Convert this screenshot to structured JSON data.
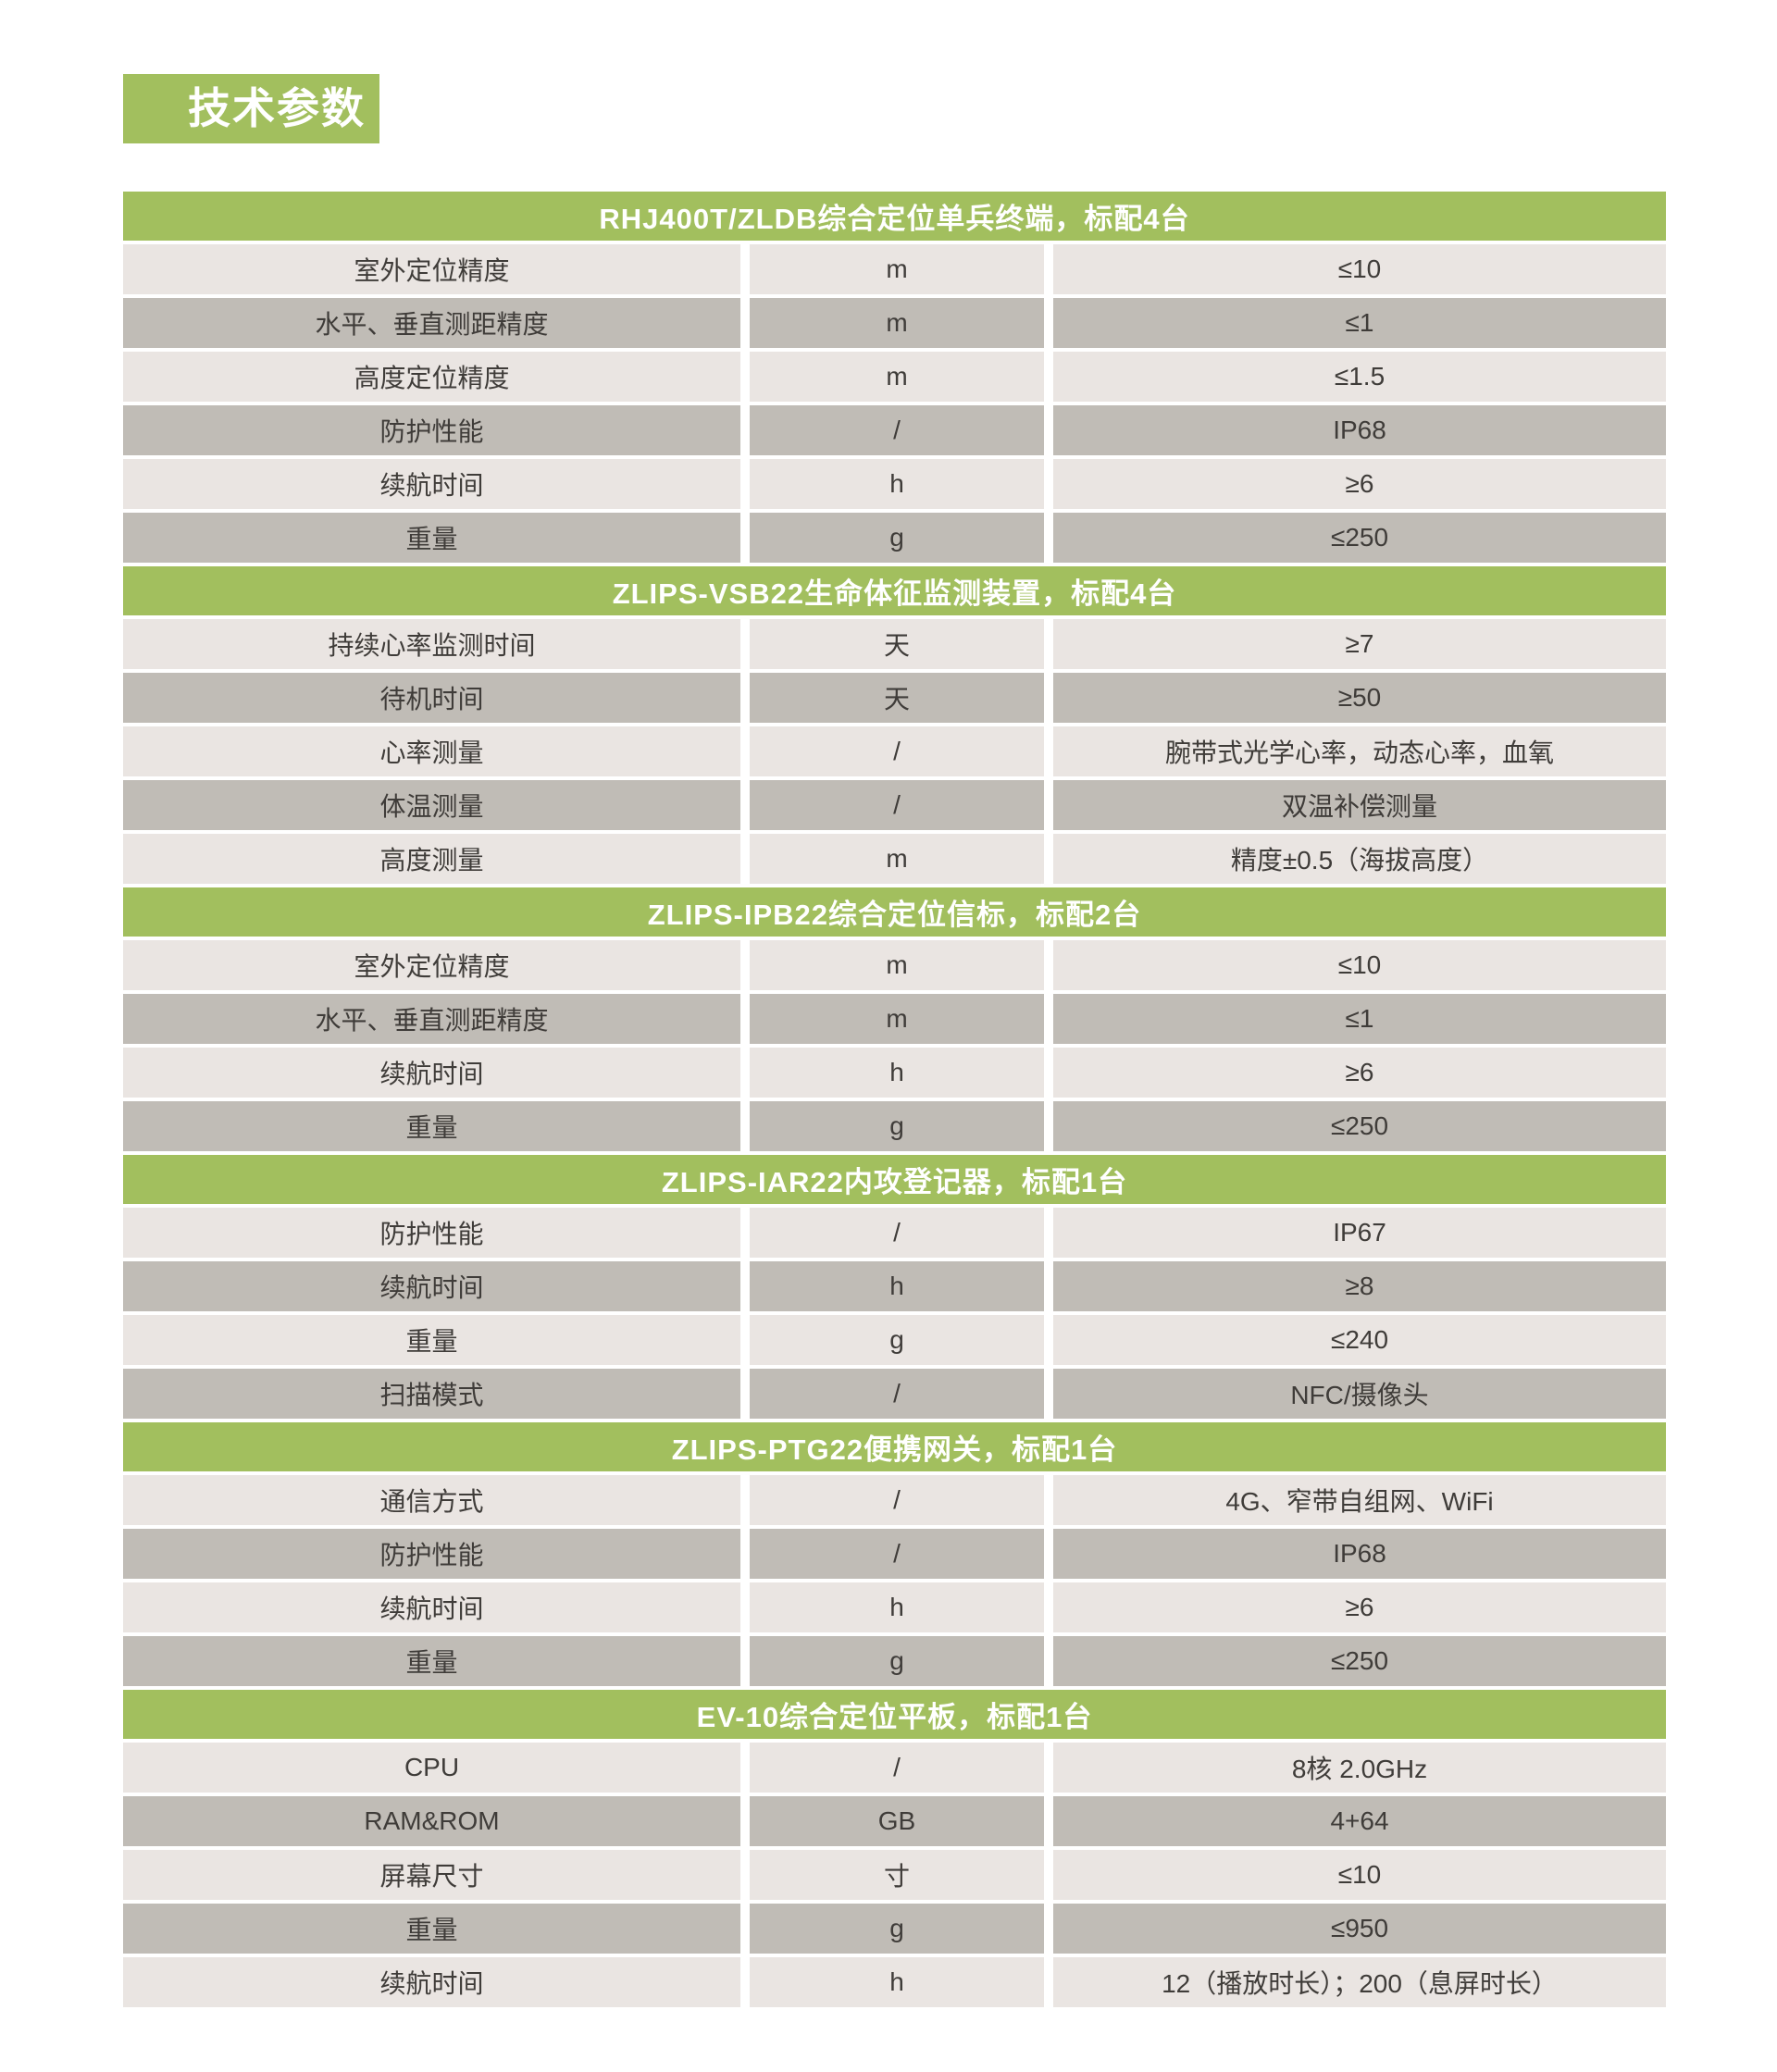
{
  "badge": {
    "label": "技术参数"
  },
  "colors": {
    "accent_green": "#a2bf5e",
    "row_light": "#eae5e2",
    "row_dark": "#c0bcb6",
    "text": "#3f3c39",
    "header_text": "#ffffff",
    "page_background": "#ffffff"
  },
  "table": {
    "sections": [
      {
        "title": "RHJ400T/ZLDB综合定位单兵终端，标配4台",
        "rows": [
          {
            "name": "室外定位精度",
            "unit": "m",
            "value": "≤10"
          },
          {
            "name": "水平、垂直测距精度",
            "unit": "m",
            "value": "≤1"
          },
          {
            "name": "高度定位精度",
            "unit": "m",
            "value": "≤1.5"
          },
          {
            "name": "防护性能",
            "unit": "/",
            "value": "IP68"
          },
          {
            "name": "续航时间",
            "unit": "h",
            "value": "≥6"
          },
          {
            "name": "重量",
            "unit": "g",
            "value": "≤250"
          }
        ]
      },
      {
        "title": "ZLIPS-VSB22生命体征监测装置，标配4台",
        "rows": [
          {
            "name": "持续心率监测时间",
            "unit": "天",
            "value": "≥7"
          },
          {
            "name": "待机时间",
            "unit": "天",
            "value": "≥50"
          },
          {
            "name": "心率测量",
            "unit": "/",
            "value": "腕带式光学心率，动态心率，血氧"
          },
          {
            "name": "体温测量",
            "unit": "/",
            "value": "双温补偿测量"
          },
          {
            "name": "高度测量",
            "unit": "m",
            "value": "精度±0.5（海拔高度）"
          }
        ]
      },
      {
        "title": "ZLIPS-IPB22综合定位信标，标配2台",
        "rows": [
          {
            "name": "室外定位精度",
            "unit": "m",
            "value": "≤10"
          },
          {
            "name": "水平、垂直测距精度",
            "unit": "m",
            "value": "≤1"
          },
          {
            "name": "续航时间",
            "unit": "h",
            "value": "≥6"
          },
          {
            "name": "重量",
            "unit": "g",
            "value": "≤250"
          }
        ]
      },
      {
        "title": "ZLIPS-IAR22内攻登记器，标配1台",
        "rows": [
          {
            "name": "防护性能",
            "unit": "/",
            "value": "IP67"
          },
          {
            "name": "续航时间",
            "unit": "h",
            "value": "≥8"
          },
          {
            "name": "重量",
            "unit": "g",
            "value": "≤240"
          },
          {
            "name": "扫描模式",
            "unit": "/",
            "value": "NFC/摄像头"
          }
        ]
      },
      {
        "title": "ZLIPS-PTG22便携网关，标配1台",
        "rows": [
          {
            "name": "通信方式",
            "unit": "/",
            "value": "4G、窄带自组网、WiFi"
          },
          {
            "name": "防护性能",
            "unit": "/",
            "value": "IP68"
          },
          {
            "name": "续航时间",
            "unit": "h",
            "value": "≥6"
          },
          {
            "name": "重量",
            "unit": "g",
            "value": "≤250"
          }
        ]
      },
      {
        "title": "EV-10综合定位平板，标配1台",
        "rows": [
          {
            "name": "CPU",
            "unit": "/",
            "value": "8核 2.0GHz"
          },
          {
            "name": "RAM&ROM",
            "unit": "GB",
            "value": "4+64"
          },
          {
            "name": "屏幕尺寸",
            "unit": "寸",
            "value": "≤10"
          },
          {
            "name": "重量",
            "unit": "g",
            "value": "≤950"
          },
          {
            "name": "续航时间",
            "unit": "h",
            "value": "12（播放时长）；200（息屏时长）"
          }
        ]
      }
    ]
  }
}
